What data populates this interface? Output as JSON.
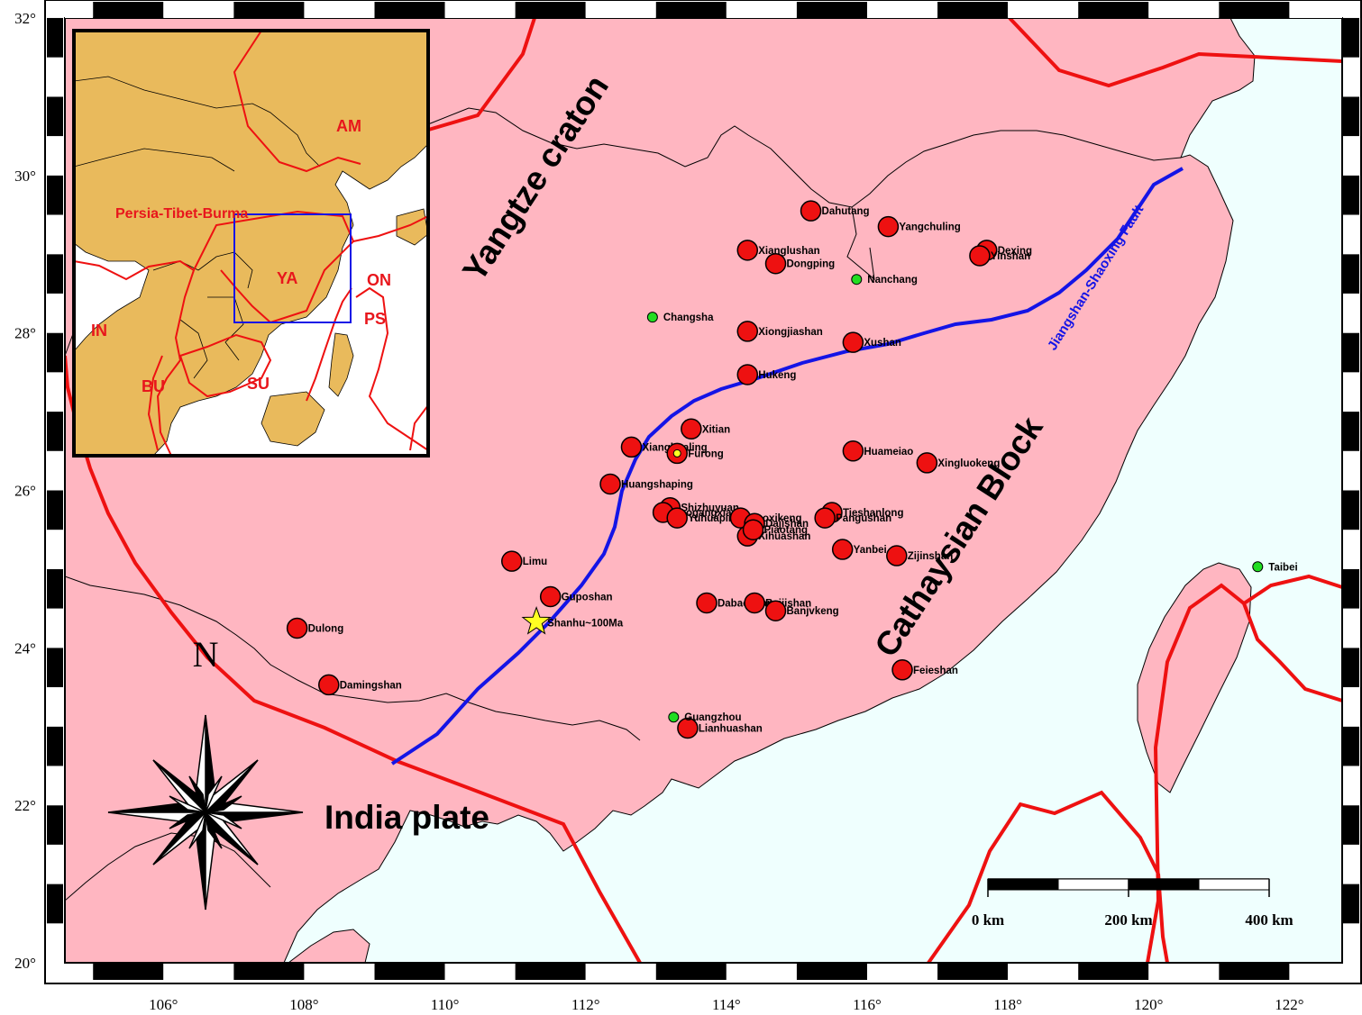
{
  "colors": {
    "land": "#ffb6c1",
    "ocean": "#effffe",
    "boundary": "#ee1111",
    "fault": "#1414e6",
    "deposit": "#ee1111",
    "city": "#22dd22",
    "star": "#ffff22",
    "inset_land": "#e9ba5c"
  },
  "axes": {
    "lon_ticks": [
      "106°",
      "108°",
      "110°",
      "112°",
      "114°",
      "116°",
      "118°",
      "120°",
      "122°"
    ],
    "lat_ticks": [
      "32°",
      "30°",
      "28°",
      "26°",
      "24°",
      "22°",
      "20°"
    ]
  },
  "regions": {
    "yangtze": "Yangtze craton",
    "cathaysia": "Cathaysian Block",
    "india": "India plate"
  },
  "fault_label": "Jiangshan-Shaoxing Fault",
  "north_label": "N",
  "scale_bar": {
    "labels": [
      "0 km",
      "200 km",
      "400 km"
    ]
  },
  "deposits": [
    {
      "name": "Dahutang",
      "lon": 115.2,
      "lat": 29.55
    },
    {
      "name": "Yangchuling",
      "lon": 116.3,
      "lat": 29.35
    },
    {
      "name": "Xianglushan",
      "lon": 114.3,
      "lat": 29.05
    },
    {
      "name": "Dongping",
      "lon": 114.7,
      "lat": 28.88
    },
    {
      "name": "Dexing",
      "lon": 117.7,
      "lat": 29.05
    },
    {
      "name": "Yinshan",
      "lon": 117.6,
      "lat": 28.98
    },
    {
      "name": "Xiongjiashan",
      "lon": 114.3,
      "lat": 28.02
    },
    {
      "name": "Xushan",
      "lon": 115.8,
      "lat": 27.88
    },
    {
      "name": "Hukeng",
      "lon": 114.3,
      "lat": 27.47
    },
    {
      "name": "Xitian",
      "lon": 113.5,
      "lat": 26.78
    },
    {
      "name": "Xianghualing",
      "lon": 112.65,
      "lat": 26.55
    },
    {
      "name": "Furong",
      "lon": 113.3,
      "lat": 26.47
    },
    {
      "name": "Huameiao",
      "lon": 115.8,
      "lat": 26.5
    },
    {
      "name": "Xingluokeng",
      "lon": 116.85,
      "lat": 26.35
    },
    {
      "name": "Huangshaping",
      "lon": 112.35,
      "lat": 26.08
    },
    {
      "name": "Shizhuyuan",
      "lon": 113.2,
      "lat": 25.78
    },
    {
      "name": "Yaogangxian",
      "lon": 113.1,
      "lat": 25.72
    },
    {
      "name": "Yuhuaping",
      "lon": 113.3,
      "lat": 25.65
    },
    {
      "name": "Taoxikeng",
      "lon": 114.2,
      "lat": 25.65
    },
    {
      "name": "Dajishan",
      "lon": 114.4,
      "lat": 25.58
    },
    {
      "name": "Xihuashan",
      "lon": 114.3,
      "lat": 25.42
    },
    {
      "name": "Piaotang",
      "lon": 114.38,
      "lat": 25.5
    },
    {
      "name": "Tieshanlong",
      "lon": 115.5,
      "lat": 25.72
    },
    {
      "name": "Pangushan",
      "lon": 115.4,
      "lat": 25.65
    },
    {
      "name": "Yanbei",
      "lon": 115.65,
      "lat": 25.25
    },
    {
      "name": "Zijinshan",
      "lon": 116.42,
      "lat": 25.17
    },
    {
      "name": "Limu",
      "lon": 110.95,
      "lat": 25.1
    },
    {
      "name": "Guposhan",
      "lon": 111.5,
      "lat": 24.65
    },
    {
      "name": "Dabaoshan",
      "lon": 113.72,
      "lat": 24.57
    },
    {
      "name": "Baijishan",
      "lon": 114.4,
      "lat": 24.57
    },
    {
      "name": "Banjvkeng",
      "lon": 114.7,
      "lat": 24.47
    },
    {
      "name": "Dulong",
      "lon": 107.9,
      "lat": 24.25
    },
    {
      "name": "Damingshan",
      "lon": 108.35,
      "lat": 23.53
    },
    {
      "name": "Feieshan",
      "lon": 116.5,
      "lat": 23.72
    },
    {
      "name": "Lianhuashan",
      "lon": 113.45,
      "lat": 22.98
    }
  ],
  "cities": [
    {
      "name": "Nanchang",
      "lon": 115.85,
      "lat": 28.68
    },
    {
      "name": "Changsha",
      "lon": 112.95,
      "lat": 28.2
    },
    {
      "name": "Guangzhou",
      "lon": 113.25,
      "lat": 23.12
    },
    {
      "name": "Taibei",
      "lon": 121.55,
      "lat": 25.03
    }
  ],
  "star": {
    "name": "Shanhu~100Ma",
    "lon": 111.3,
    "lat": 24.33
  },
  "inset": {
    "labels": [
      "AM",
      "Persia-Tibet-Burma",
      "YA",
      "ON",
      "PS",
      "IN",
      "BU",
      "SU"
    ]
  }
}
